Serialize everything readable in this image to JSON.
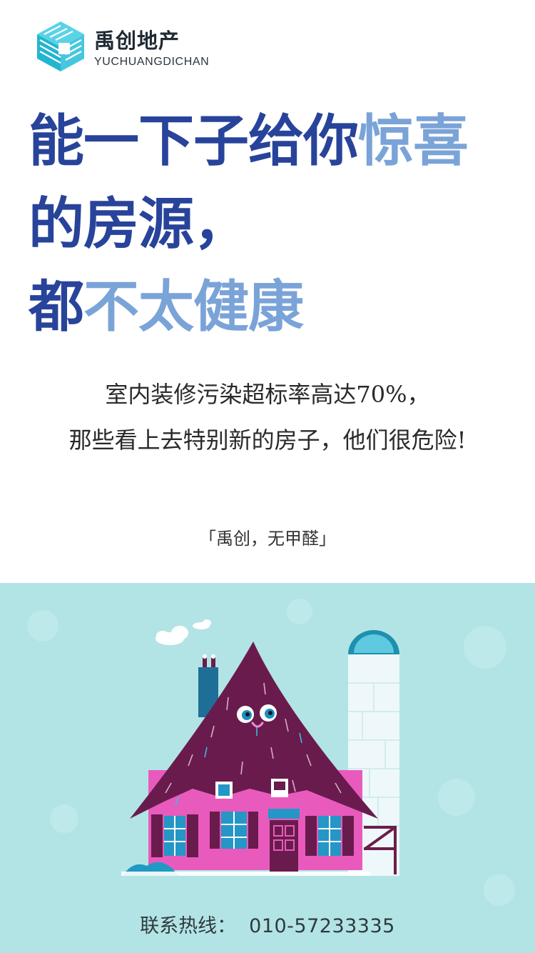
{
  "brand": {
    "name_cn": "禹创地产",
    "name_en": "YUCHUANGDICHAN",
    "logo_icon": "stacked-blocks-logo"
  },
  "headline": {
    "line1_dark": "能一下子给你",
    "line1_light": "惊喜",
    "line2_dark": "的房源，",
    "line3_dark": "都",
    "line3_light": "不太健康"
  },
  "subtext": {
    "line1": "室内装修污染超标率高达70%，",
    "line2": "那些看上去特别新的房子，他们很危险!"
  },
  "slogan": "「禹创，无甲醛」",
  "illustration": {
    "icon": "smiling-thatched-house-illustration",
    "background": "#b3e4e5"
  },
  "contact": {
    "label": "联系热线：",
    "phone": "010-57233335"
  },
  "colors": {
    "headline_dark": "#28439a",
    "headline_light": "#7aa3d8",
    "logo_cyan": "#2fc0d8"
  }
}
